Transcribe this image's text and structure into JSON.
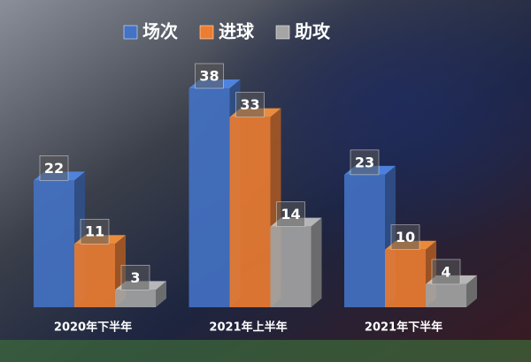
{
  "chart_data": {
    "type": "bar3d",
    "categories": [
      "2020年下半年",
      "2021年上半年",
      "2021年下半年"
    ],
    "series": [
      {
        "name": "场次",
        "color": "#4472c4",
        "values": [
          22,
          38,
          23
        ]
      },
      {
        "name": "进球",
        "color": "#ed7d31",
        "values": [
          11,
          33,
          10
        ]
      },
      {
        "name": "助攻",
        "color": "#a5a5a5",
        "values": [
          3,
          14,
          4
        ]
      }
    ],
    "legend": "top"
  }
}
